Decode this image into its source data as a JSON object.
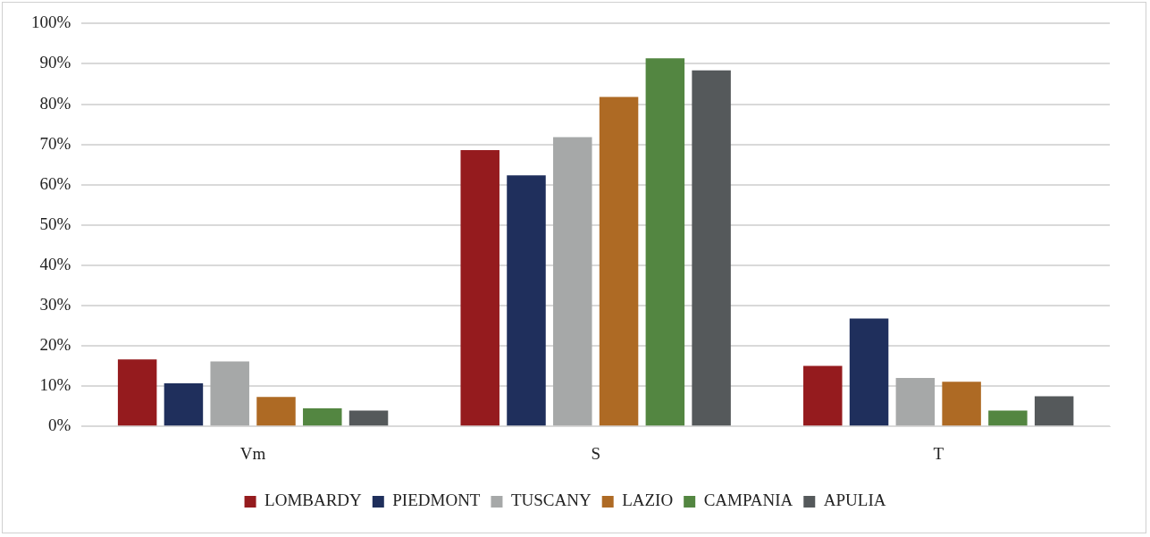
{
  "chart_data": {
    "type": "bar",
    "categories": [
      "Vm",
      "S",
      "T"
    ],
    "series": [
      {
        "name": "LOMBARDY",
        "color": "#951b1e",
        "values": [
          16.6,
          68.6,
          15.0
        ]
      },
      {
        "name": "PIEDMONT",
        "color": "#1f2f5c",
        "values": [
          10.7,
          62.3,
          26.8
        ]
      },
      {
        "name": "TUSCANY",
        "color": "#a6a8a8",
        "values": [
          16.1,
          71.8,
          12.0
        ]
      },
      {
        "name": "LAZIO",
        "color": "#ae6a24",
        "values": [
          7.3,
          81.8,
          11.1
        ]
      },
      {
        "name": "CAMPANIA",
        "color": "#538641",
        "values": [
          4.5,
          91.4,
          3.9
        ]
      },
      {
        "name": "APULIA",
        "color": "#55595b",
        "values": [
          3.9,
          88.4,
          7.5
        ]
      }
    ],
    "ylim": [
      0,
      100
    ],
    "yticks": [
      {
        "value": 0,
        "label": "0%"
      },
      {
        "value": 10,
        "label": "10%"
      },
      {
        "value": 20,
        "label": "20%"
      },
      {
        "value": 30,
        "label": "30%"
      },
      {
        "value": 40,
        "label": "40%"
      },
      {
        "value": 50,
        "label": "50%"
      },
      {
        "value": 60,
        "label": "60%"
      },
      {
        "value": 70,
        "label": "70%"
      },
      {
        "value": 80,
        "label": "80%"
      },
      {
        "value": 90,
        "label": "90%"
      },
      {
        "value": 100,
        "label": "100%"
      }
    ],
    "grid": "y",
    "legend": "bottom"
  }
}
